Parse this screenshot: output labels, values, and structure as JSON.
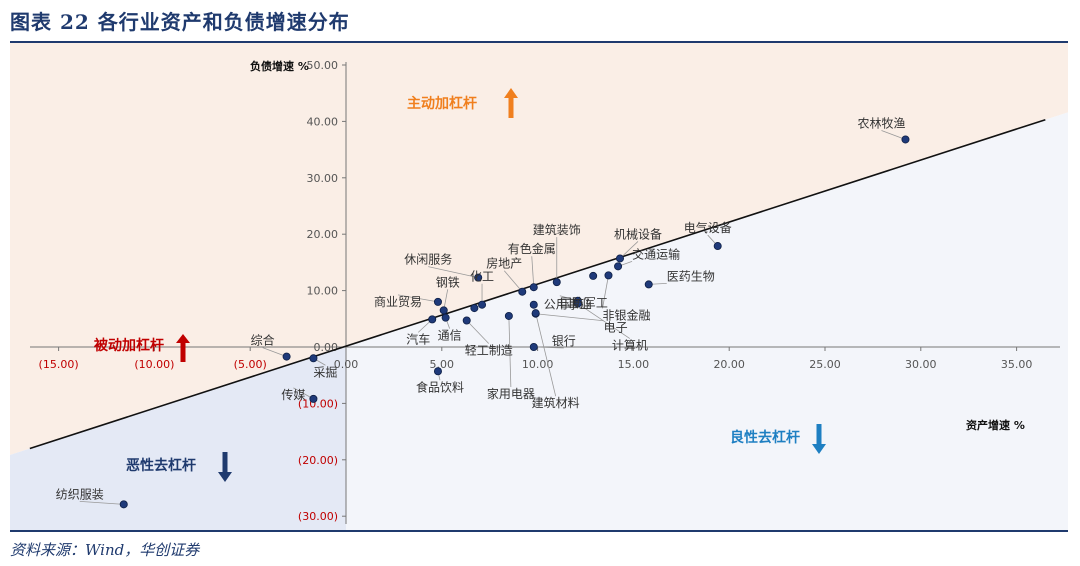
{
  "figure": {
    "title": "图表 22   各行业资产和负债增速分布",
    "source": "资料来源：Wind，华创证券"
  },
  "zones": {
    "top": "主动加杠杆",
    "left": "被动加杠杆",
    "bottom_left": "恶性去杠杆",
    "bottom_right": "良性去杠杆"
  },
  "colors": {
    "top_zone": "#faeee6",
    "bottom_zone": "#f3f5fa",
    "left_zone": "#e4e9f5",
    "point": "#1f3a7a",
    "top_text": "#f07f1e",
    "left_text": "#c00000",
    "bottom_left_text": "#1f3a6e",
    "bottom_right_text": "#1e7fc2",
    "negative_tick": "#c00000",
    "positive_tick": "#555555"
  },
  "chart_data": {
    "type": "scatter",
    "title": "",
    "xlabel": "资产增速 %",
    "ylabel": "负债增速 %",
    "xlim": [
      -17,
      37
    ],
    "ylim": [
      -31,
      52
    ],
    "x_ticks": [
      "(15.00)",
      "(10.00)",
      "(5.00)",
      "0.00",
      "5.00",
      "10.00",
      "15.00",
      "20.00",
      "25.00",
      "30.00",
      "35.00"
    ],
    "x_tick_values": [
      -15,
      -10,
      -5,
      0,
      5,
      10,
      15,
      20,
      25,
      30,
      35
    ],
    "y_ticks": [
      "50.00",
      "40.00",
      "30.00",
      "20.00",
      "10.00",
      "0.00",
      "(10.00)",
      "(20.00)",
      "(30.00)"
    ],
    "y_tick_values": [
      50,
      40,
      30,
      20,
      10,
      0,
      -10,
      -20,
      -30
    ],
    "reference_line": [
      [
        -16.5,
        -18
      ],
      [
        36.5,
        40.3
      ]
    ],
    "points": [
      {
        "x": 29.2,
        "y": 36.8,
        "label": "农林牧渔"
      },
      {
        "x": 19.4,
        "y": 17.9,
        "label": "电气设备"
      },
      {
        "x": 14.3,
        "y": 15.7,
        "label": "机械设备"
      },
      {
        "x": 14.2,
        "y": 14.3,
        "label": "交通运输"
      },
      {
        "x": 15.8,
        "y": 11.1,
        "label": "医药生物"
      },
      {
        "x": 13.7,
        "y": 12.7,
        "label": "非银金融"
      },
      {
        "x": 12.9,
        "y": 12.6,
        "label": ""
      },
      {
        "x": 11.0,
        "y": 11.5,
        "label": "建筑装饰"
      },
      {
        "x": 9.8,
        "y": 10.6,
        "label": "有色金属"
      },
      {
        "x": 9.2,
        "y": 9.8,
        "label": "房地产"
      },
      {
        "x": 6.9,
        "y": 12.3,
        "label": "休闲服务"
      },
      {
        "x": 12.1,
        "y": 8.2,
        "label": "国防军工"
      },
      {
        "x": 9.8,
        "y": 7.5,
        "label": "公用事业"
      },
      {
        "x": 9.9,
        "y": 5.9,
        "label": "电子"
      },
      {
        "x": 7.1,
        "y": 7.5,
        "label": "化工"
      },
      {
        "x": 6.7,
        "y": 6.9,
        "label": ""
      },
      {
        "x": 4.8,
        "y": 8.0,
        "label": "商业贸易"
      },
      {
        "x": 5.1,
        "y": 6.5,
        "label": "钢铁"
      },
      {
        "x": 4.5,
        "y": 4.9,
        "label": "汽车"
      },
      {
        "x": 5.2,
        "y": 5.2,
        "label": "通信"
      },
      {
        "x": 6.3,
        "y": 4.7,
        "label": "轻工制造"
      },
      {
        "x": 8.5,
        "y": 5.5,
        "label": "家用电器"
      },
      {
        "x": 9.8,
        "y": 0.0,
        "label": "银行"
      },
      {
        "x": 12.1,
        "y": 7.7,
        "label": "计算机"
      },
      {
        "x": 9.9,
        "y": 6.0,
        "label": "建筑材料"
      },
      {
        "x": 4.8,
        "y": -4.3,
        "label": "食品饮料"
      },
      {
        "x": -3.1,
        "y": -1.7,
        "label": "综合"
      },
      {
        "x": -1.7,
        "y": -2.0,
        "label": "采掘"
      },
      {
        "x": -1.7,
        "y": -9.2,
        "label": "传媒"
      },
      {
        "x": -11.6,
        "y": -27.9,
        "label": "纺织服装"
      }
    ]
  }
}
